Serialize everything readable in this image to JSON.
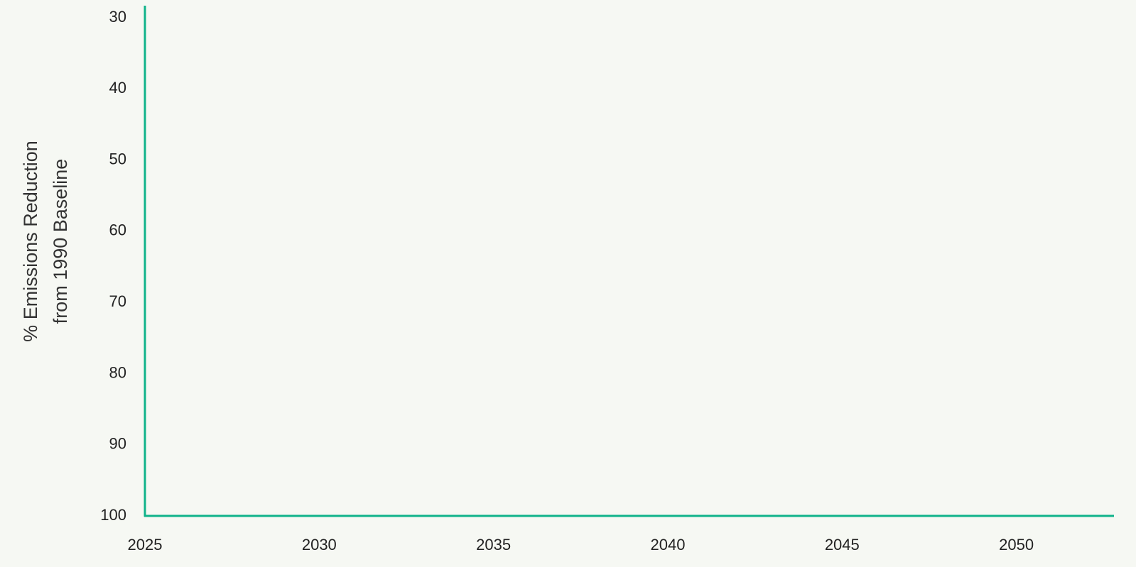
{
  "chart_data": {
    "type": "line",
    "y_label": [
      "% Emissions Reduction",
      "from 1990 Baseline"
    ],
    "series": [],
    "xlim": [
      2025,
      2052.8
    ],
    "xticks": [
      2025,
      2030,
      2035,
      2040,
      2045,
      2050
    ],
    "ylim": [
      28.3,
      100
    ],
    "yticks": [
      30,
      40,
      50,
      60,
      70,
      80,
      90,
      100
    ],
    "y_inverted": true,
    "axis_color": "#10b38a",
    "grid": false
  }
}
